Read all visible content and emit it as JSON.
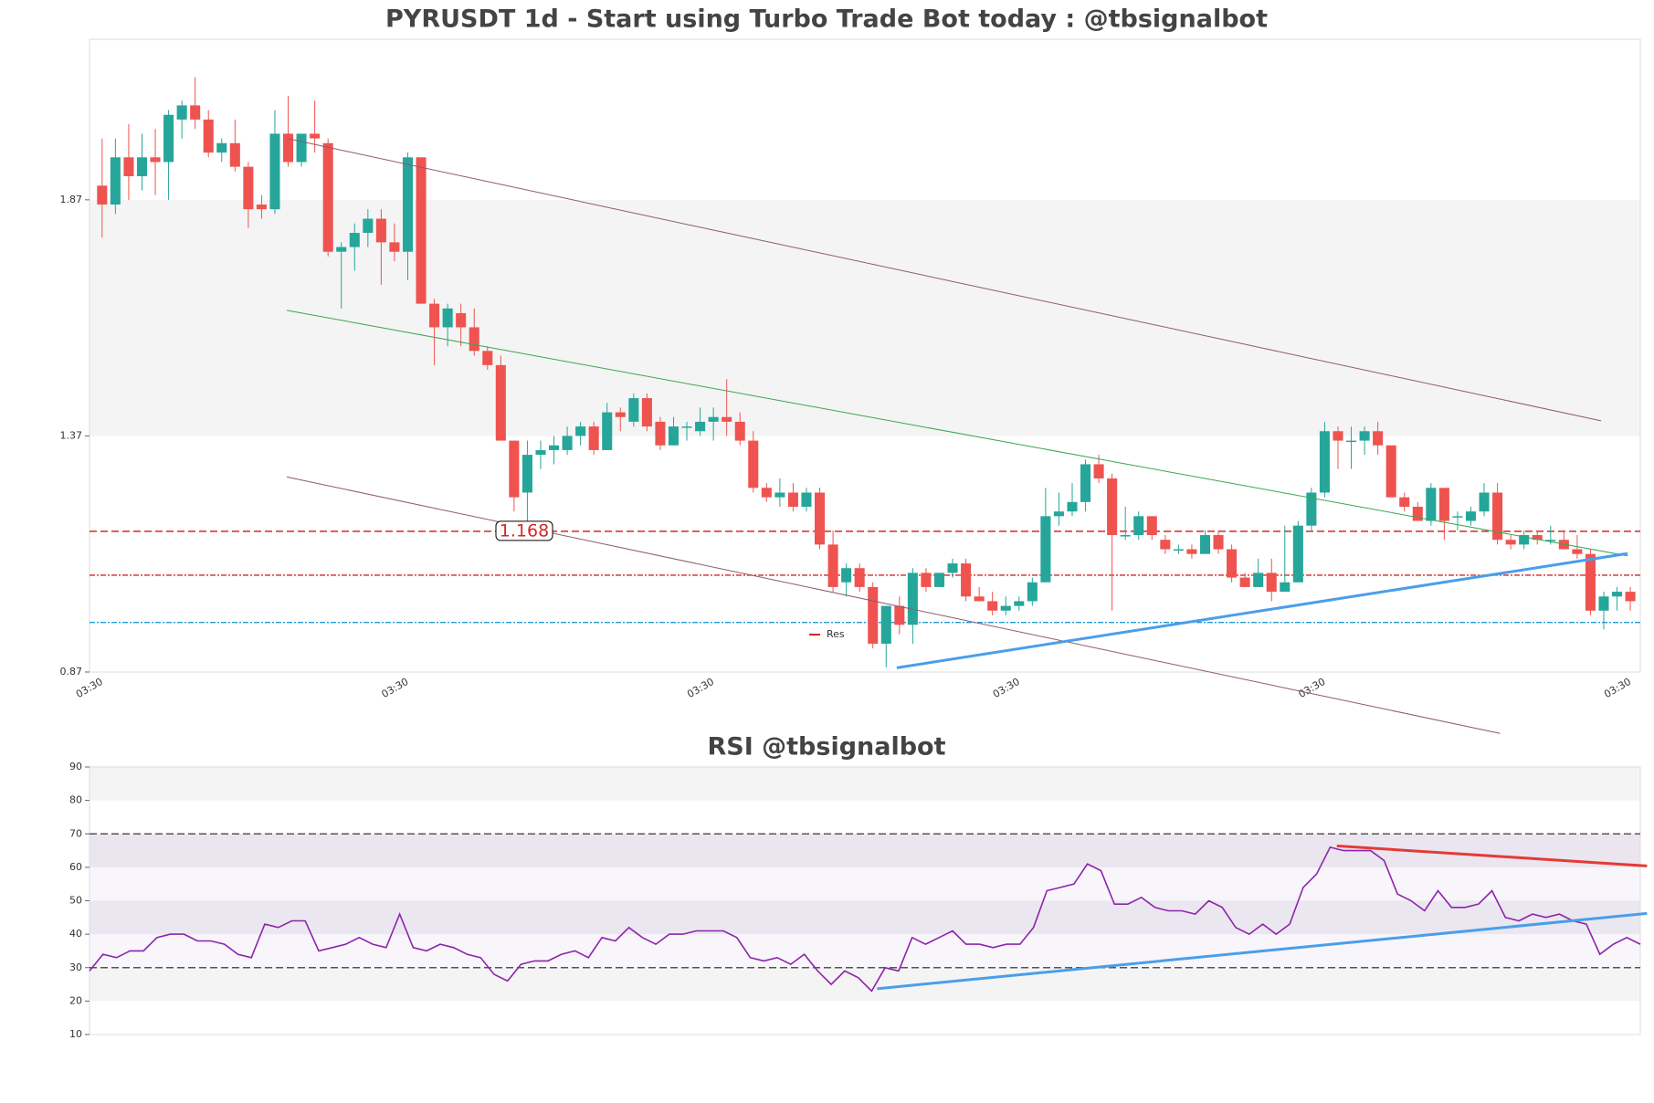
{
  "chart_data": [
    {
      "type": "candlestick",
      "title": "PYRUSDT 1d - Start using Turbo Trade Bot today : @tbsignalbot",
      "categories": [
        "03:30",
        null,
        null,
        null,
        null,
        null,
        null,
        null,
        null,
        null,
        null,
        null,
        null,
        null,
        null,
        null,
        null,
        null,
        null,
        null,
        null,
        null,
        null,
        "03:30",
        null,
        null,
        null,
        null,
        null,
        null,
        null,
        null,
        null,
        null,
        null,
        null,
        null,
        null,
        null,
        null,
        null,
        null,
        null,
        null,
        null,
        null,
        "03:30",
        null,
        null,
        null,
        null,
        null,
        null,
        null,
        null,
        null,
        null,
        null,
        null,
        null,
        null,
        null,
        null,
        null,
        null,
        null,
        null,
        null,
        null,
        "03:30",
        null,
        null,
        null,
        null,
        null,
        null,
        null,
        null,
        null,
        null,
        null,
        null,
        null,
        null,
        null,
        null,
        null,
        null,
        null,
        null,
        null,
        null,
        "03:30",
        null,
        null,
        null,
        null,
        null,
        null,
        null,
        null,
        null,
        null,
        null,
        null,
        null,
        null,
        null,
        null,
        null,
        null,
        null,
        null,
        null,
        null,
        "03:30"
      ],
      "open": [
        1.9,
        1.86,
        1.96,
        1.92,
        1.96,
        1.95,
        2.04,
        2.07,
        2.04,
        1.97,
        1.99,
        1.94,
        1.86,
        1.85,
        2.01,
        1.95,
        2.01,
        1.99,
        1.76,
        1.77,
        1.8,
        1.83,
        1.78,
        1.76,
        1.96,
        1.65,
        1.6,
        1.63,
        1.6,
        1.55,
        1.52,
        1.36,
        1.25,
        1.33,
        1.34,
        1.34,
        1.37,
        1.39,
        1.34,
        1.42,
        1.4,
        1.45,
        1.4,
        1.35,
        1.39,
        1.38,
        1.4,
        1.41,
        1.4,
        1.36,
        1.26,
        1.24,
        1.25,
        1.22,
        1.25,
        1.14,
        1.06,
        1.09,
        1.05,
        0.93,
        1.01,
        0.97,
        1.08,
        1.05,
        1.08,
        1.1,
        1.03,
        1.02,
        1.0,
        1.01,
        1.02,
        1.06,
        1.2,
        1.21,
        1.23,
        1.31,
        1.28,
        1.16,
        1.16,
        1.2,
        1.15,
        1.13,
        1.13,
        1.12,
        1.16,
        1.13,
        1.07,
        1.05,
        1.08,
        1.04,
        1.06,
        1.18,
        1.25,
        1.38,
        1.36,
        1.36,
        1.38,
        1.35,
        1.24,
        1.22,
        1.19,
        1.26,
        1.2,
        1.19,
        1.21,
        1.25,
        1.15,
        1.14,
        1.16,
        1.15,
        1.15,
        1.13,
        1.12,
        1.0,
        1.03,
        1.04
      ],
      "high": [
        2.0,
        2.0,
        2.03,
        2.01,
        2.02,
        2.06,
        2.08,
        2.13,
        2.06,
        2.0,
        2.04,
        1.95,
        1.88,
        2.06,
        2.09,
        2.01,
        2.08,
        2.0,
        1.78,
        1.82,
        1.85,
        1.85,
        1.82,
        1.97,
        1.96,
        1.66,
        1.65,
        1.65,
        1.64,
        1.56,
        1.54,
        1.36,
        1.36,
        1.36,
        1.37,
        1.39,
        1.4,
        1.4,
        1.44,
        1.43,
        1.46,
        1.46,
        1.41,
        1.41,
        1.4,
        1.43,
        1.43,
        1.49,
        1.42,
        1.38,
        1.27,
        1.28,
        1.27,
        1.26,
        1.26,
        1.17,
        1.1,
        1.1,
        1.06,
        1.01,
        1.03,
        1.09,
        1.09,
        1.08,
        1.11,
        1.11,
        1.05,
        1.04,
        1.03,
        1.03,
        1.07,
        1.26,
        1.25,
        1.27,
        1.32,
        1.33,
        1.29,
        1.22,
        1.21,
        1.2,
        1.16,
        1.14,
        1.14,
        1.17,
        1.17,
        1.14,
        1.08,
        1.11,
        1.11,
        1.18,
        1.19,
        1.26,
        1.4,
        1.39,
        1.39,
        1.39,
        1.4,
        1.35,
        1.25,
        1.23,
        1.27,
        1.26,
        1.21,
        1.22,
        1.27,
        1.27,
        1.16,
        1.17,
        1.17,
        1.18,
        1.17,
        1.16,
        1.13,
        1.04,
        1.05,
        1.05
      ],
      "low": [
        1.79,
        1.84,
        1.87,
        1.89,
        1.88,
        1.87,
        2.0,
        2.02,
        1.96,
        1.95,
        1.93,
        1.81,
        1.83,
        1.84,
        1.94,
        1.94,
        1.97,
        1.75,
        1.64,
        1.72,
        1.77,
        1.69,
        1.74,
        1.7,
        1.65,
        1.52,
        1.56,
        1.56,
        1.54,
        1.51,
        1.36,
        1.21,
        1.19,
        1.3,
        1.31,
        1.33,
        1.35,
        1.33,
        1.35,
        1.38,
        1.39,
        1.38,
        1.34,
        1.35,
        1.36,
        1.37,
        1.36,
        1.37,
        1.35,
        1.25,
        1.23,
        1.22,
        1.21,
        1.21,
        1.13,
        1.04,
        1.03,
        1.04,
        0.92,
        0.88,
        0.95,
        0.93,
        1.04,
        1.05,
        1.07,
        1.02,
        1.02,
        0.99,
        0.99,
        1.0,
        1.01,
        1.06,
        1.18,
        1.2,
        1.21,
        1.27,
        1.0,
        1.15,
        1.15,
        1.15,
        1.12,
        1.12,
        1.11,
        1.12,
        1.12,
        1.06,
        1.05,
        1.05,
        1.02,
        1.04,
        1.06,
        1.17,
        1.24,
        1.3,
        1.3,
        1.33,
        1.33,
        1.24,
        1.21,
        1.19,
        1.18,
        1.15,
        1.17,
        1.18,
        1.2,
        1.14,
        1.13,
        1.13,
        1.14,
        1.14,
        1.13,
        1.11,
        0.99,
        0.96,
        1.0,
        1.0
      ],
      "close": [
        1.86,
        1.96,
        1.92,
        1.96,
        1.95,
        2.05,
        2.07,
        2.04,
        1.97,
        1.99,
        1.94,
        1.85,
        1.85,
        2.01,
        1.95,
        2.01,
        2.0,
        1.76,
        1.77,
        1.8,
        1.83,
        1.78,
        1.76,
        1.96,
        1.65,
        1.6,
        1.64,
        1.6,
        1.55,
        1.52,
        1.36,
        1.24,
        1.33,
        1.34,
        1.35,
        1.37,
        1.39,
        1.34,
        1.42,
        1.41,
        1.45,
        1.39,
        1.35,
        1.39,
        1.39,
        1.4,
        1.41,
        1.4,
        1.36,
        1.26,
        1.24,
        1.25,
        1.22,
        1.25,
        1.14,
        1.05,
        1.09,
        1.05,
        0.93,
        1.01,
        0.97,
        1.08,
        1.05,
        1.08,
        1.1,
        1.03,
        1.02,
        1.0,
        1.01,
        1.02,
        1.06,
        1.2,
        1.21,
        1.23,
        1.31,
        1.28,
        1.16,
        1.16,
        1.2,
        1.16,
        1.13,
        1.13,
        1.12,
        1.16,
        1.13,
        1.07,
        1.05,
        1.08,
        1.04,
        1.06,
        1.18,
        1.25,
        1.38,
        1.36,
        1.36,
        1.38,
        1.35,
        1.24,
        1.22,
        1.19,
        1.26,
        1.19,
        1.2,
        1.21,
        1.25,
        1.15,
        1.14,
        1.16,
        1.15,
        1.15,
        1.13,
        1.12,
        1.0,
        1.03,
        1.04,
        1.02
      ],
      "up_color": "#26a69a",
      "down_color": "#ef5350",
      "ylim": [
        0.87,
        2.21
      ],
      "yticks": [
        0.87,
        1.37,
        1.87
      ],
      "bands": [
        {
          "from": 1.37,
          "to": 1.87,
          "color": "#f4f4f4"
        }
      ],
      "hlines": [
        {
          "value": 1.168,
          "color": "#d62728",
          "style": "dashed",
          "label": true
        },
        {
          "name": "Res",
          "value": 1.075,
          "color": "#d62728",
          "style": "dotdash"
        },
        {
          "value": 0.975,
          "color": "#1f9bd6",
          "style": "dotdash"
        }
      ],
      "trendlines": [
        {
          "x": [
            13.9,
            112.8
          ],
          "y": [
            2.0,
            1.402
          ],
          "color": "#8d5a6e",
          "width": 1
        },
        {
          "x": [
            13.9,
            114.8
          ],
          "y": [
            1.636,
            1.116
          ],
          "color": "#3aa655",
          "width": 1
        },
        {
          "x": [
            13.9,
            105.2
          ],
          "y": [
            1.283,
            0.74
          ],
          "color": "#8d5a6e",
          "width": 1
        },
        {
          "x": [
            59.8,
            114.8
          ],
          "y": [
            0.879,
            1.121
          ],
          "color": "#4a9eea",
          "width": 3
        }
      ]
    },
    {
      "type": "line",
      "title": "RSI @tbsignalbot",
      "values": [
        29,
        34,
        33,
        35,
        35,
        39,
        40,
        40,
        38,
        38,
        37,
        34,
        33,
        43,
        42,
        44,
        44,
        35,
        36,
        37,
        39,
        37,
        36,
        46,
        36,
        35,
        37,
        36,
        34,
        33,
        28,
        26,
        31,
        32,
        32,
        34,
        35,
        33,
        39,
        38,
        42,
        39,
        37,
        40,
        40,
        41,
        41,
        41,
        39,
        33,
        32,
        33,
        31,
        34,
        29,
        25,
        29,
        27,
        23,
        30,
        29,
        39,
        37,
        39,
        41,
        37,
        37,
        36,
        37,
        37,
        42,
        53,
        54,
        55,
        61,
        59,
        49,
        49,
        51,
        48,
        47,
        47,
        46,
        50,
        48,
        42,
        40,
        43,
        40,
        43,
        54,
        58,
        66,
        65,
        65,
        65,
        62,
        52,
        50,
        47,
        53,
        48,
        48,
        49,
        53,
        45,
        44,
        46,
        45,
        46,
        44,
        43,
        34,
        37,
        39,
        37
      ],
      "color": "#8e24aa",
      "ylim": [
        10,
        90
      ],
      "yticks": [
        10,
        20,
        30,
        40,
        50,
        60,
        70,
        80,
        90
      ],
      "bands": [
        {
          "from": 80,
          "to": 90,
          "color": "#f4f4f4"
        },
        {
          "from": 60,
          "to": 70,
          "color": "#efedf2"
        },
        {
          "from": 40,
          "to": 50,
          "color": "#f1f0f3"
        },
        {
          "from": 20,
          "to": 30,
          "color": "#f4f4f4"
        },
        {
          "from": 30,
          "to": 70,
          "color": "rgba(200,170,220,0.12)"
        }
      ],
      "hlines": [
        {
          "value": 70,
          "color": "#555",
          "style": "dashed"
        },
        {
          "value": 30,
          "color": "#555",
          "style": "dashed"
        }
      ],
      "trendlines": [
        {
          "x": [
            92.5,
            115.5
          ],
          "y": [
            66.4,
            60.4
          ],
          "color": "#e53935",
          "width": 3
        },
        {
          "x": [
            58.4,
            115.5
          ],
          "y": [
            23.7,
            46.2
          ],
          "color": "#4a9eea",
          "width": 3
        }
      ]
    }
  ]
}
